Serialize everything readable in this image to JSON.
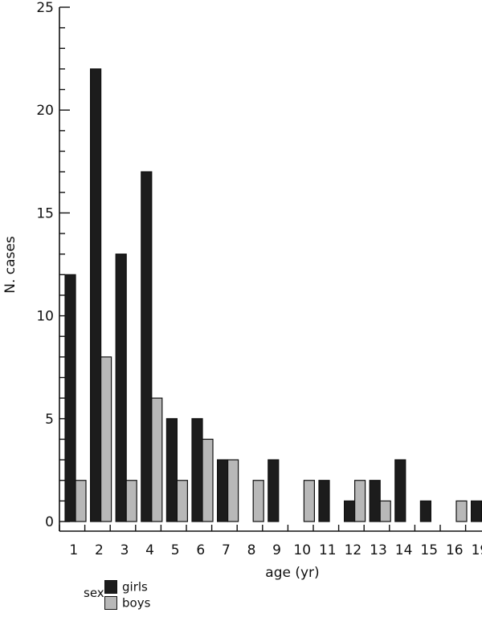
{
  "chart_data": {
    "type": "bar",
    "title": "",
    "xlabel": "age (yr)",
    "ylabel": "N. cases",
    "ylim": [
      0,
      25
    ],
    "yticks": [
      0,
      5,
      10,
      15,
      20,
      25
    ],
    "categories": [
      "1",
      "2",
      "3",
      "4",
      "5",
      "6",
      "7",
      "8",
      "9",
      "10",
      "11",
      "12",
      "13",
      "14",
      "15",
      "16",
      "19"
    ],
    "series": [
      {
        "name": "girls",
        "color": "#1c1c1c",
        "values": [
          12,
          22,
          13,
          17,
          5,
          5,
          3,
          0,
          3,
          0,
          2,
          1,
          2,
          3,
          1,
          0,
          1
        ]
      },
      {
        "name": "boys",
        "color": "#b8b8b8",
        "values": [
          2,
          8,
          2,
          6,
          2,
          4,
          3,
          2,
          0,
          2,
          0,
          2,
          1,
          0,
          0,
          1,
          0
        ]
      }
    ],
    "legend": {
      "title": "sex",
      "placement": "bottom-left"
    },
    "grid": false
  }
}
